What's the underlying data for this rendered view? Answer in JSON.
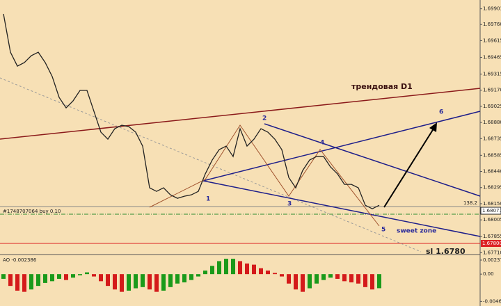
{
  "chart_data": [
    {
      "type": "line",
      "color": "#222222",
      "values": [
        1.69855,
        1.69511,
        1.69386,
        1.69418,
        1.6948,
        1.69511,
        1.69418,
        1.69293,
        1.69105,
        1.69011,
        1.69074,
        1.69168,
        1.69168,
        1.6898,
        1.68793,
        1.6873,
        1.68824,
        1.68855,
        1.68843,
        1.68793,
        1.68668,
        1.68293,
        1.68261,
        1.68293,
        1.6823,
        1.68199,
        1.68218,
        1.6823,
        1.68261,
        1.68418,
        1.68543,
        1.68636,
        1.68668,
        1.68574,
        1.68824,
        1.68668,
        1.6873,
        1.68824,
        1.68793,
        1.6873,
        1.68636,
        1.68386,
        1.68293,
        1.68449,
        1.68543,
        1.68574,
        1.68574,
        1.6848,
        1.68418,
        1.68324,
        1.68324,
        1.68293,
        1.68136,
        1.68105,
        1.68136
      ],
      "ylim": [
        1.677,
        1.6998
      ],
      "yticks": [
        1.69901,
        {
          "value": 1.6976,
          "label": "1.69760"
        },
        1.69615,
        1.69465,
        1.69315,
        {
          "value": 1.6917,
          "label": "1.69170"
        },
        1.69025,
        {
          "value": 1.6888,
          "label": "1.68880"
        },
        1.68735,
        1.68585,
        {
          "value": 1.6844,
          "label": "1.68440"
        },
        1.68295,
        {
          "value": 1.6815,
          "label": "1.68150"
        },
        1.68005,
        1.67855,
        {
          "value": 1.6771,
          "label": "1.67710"
        }
      ],
      "annotations": [
        "трендовая D1",
        "sl 1.6780",
        "sweet zone",
        "1",
        "2",
        "3",
        "4",
        "5",
        "6",
        "#1748707064 buy 0.10"
      ],
      "price_tags": [
        "138.2",
        "1.68071",
        "1.67800"
      ]
    },
    {
      "type": "bar",
      "title": "AO -0.002386",
      "values": [
        -0.0008,
        -0.002,
        -0.0028,
        -0.003,
        -0.0026,
        -0.002,
        -0.0015,
        -0.0012,
        -0.0008,
        -0.001,
        -0.0006,
        -0.0002,
        0.0003,
        -0.0004,
        -0.0012,
        -0.002,
        -0.0026,
        -0.003,
        -0.0028,
        -0.0024,
        -0.0022,
        -0.0026,
        -0.003,
        -0.0028,
        -0.0022,
        -0.0016,
        -0.0014,
        -0.001,
        -0.0004,
        0.0006,
        0.0014,
        0.0022,
        0.0026,
        0.0026,
        0.0022,
        0.0018,
        0.0016,
        0.001,
        0.0006,
        0.0002,
        -0.0004,
        -0.0016,
        -0.0026,
        -0.003,
        -0.0024,
        -0.0016,
        -0.001,
        -0.0006,
        -0.0008,
        -0.0012,
        -0.0014,
        -0.0016,
        -0.0022,
        -0.0026,
        -0.002386
      ],
      "ylim": [
        -0.0054,
        0.0032
      ],
      "yticks": [
        0.002379,
        {
          "value": 0,
          "label": "0.00"
        },
        -0.004617
      ]
    }
  ]
}
